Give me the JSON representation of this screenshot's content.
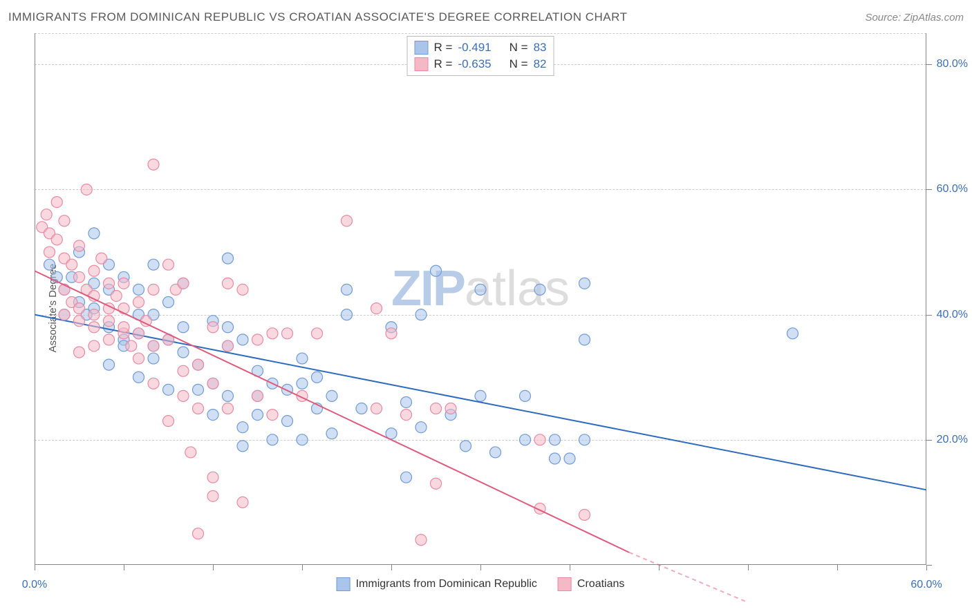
{
  "header": {
    "title": "IMMIGRANTS FROM DOMINICAN REPUBLIC VS CROATIAN ASSOCIATE'S DEGREE CORRELATION CHART",
    "source": "Source: ZipAtlas.com"
  },
  "chart": {
    "type": "scatter",
    "y_axis_label": "Associate's Degree",
    "watermark_zip": "ZIP",
    "watermark_atlas": "atlas",
    "xlim": [
      0,
      60
    ],
    "ylim": [
      0,
      85
    ],
    "x_ticks": [
      0,
      6,
      12,
      18,
      24,
      30,
      36,
      42,
      48,
      54,
      60
    ],
    "x_tick_labels": {
      "0": "0.0%",
      "60": "60.0%"
    },
    "y_ticks": [
      0,
      20,
      40,
      60,
      80
    ],
    "y_tick_labels": {
      "20": "20.0%",
      "40": "40.0%",
      "60": "60.0%",
      "80": "80.0%"
    },
    "grid_lines_y": [
      20,
      40,
      60,
      80,
      85
    ],
    "grid_color": "#cccccc",
    "background_color": "#ffffff",
    "axis_color": "#888888",
    "tick_label_color": "#3b6fb6",
    "series": [
      {
        "name": "Immigrants from Dominican Republic",
        "color_fill": "#a9c5ea",
        "color_stroke": "#6f9bd8",
        "marker_radius": 8,
        "fill_opacity": 0.55,
        "regression": {
          "x1": 0,
          "y1": 40,
          "x2": 60,
          "y2": 12,
          "dashed_after_x": 60,
          "color": "#2e6bc0",
          "width": 2
        },
        "points": [
          [
            1,
            48
          ],
          [
            1.5,
            46
          ],
          [
            2,
            44
          ],
          [
            2.5,
            46
          ],
          [
            3,
            50
          ],
          [
            3.5,
            40
          ],
          [
            4,
            53
          ],
          [
            4,
            45
          ],
          [
            5,
            48
          ],
          [
            5,
            44
          ],
          [
            5,
            38
          ],
          [
            6,
            36
          ],
          [
            6,
            35
          ],
          [
            7,
            44
          ],
          [
            7,
            40
          ],
          [
            7,
            30
          ],
          [
            8,
            48
          ],
          [
            8,
            35
          ],
          [
            8,
            33
          ],
          [
            9,
            42
          ],
          [
            9,
            36
          ],
          [
            9,
            28
          ],
          [
            10,
            45
          ],
          [
            10,
            38
          ],
          [
            10,
            34
          ],
          [
            11,
            32
          ],
          [
            11,
            28
          ],
          [
            12,
            39
          ],
          [
            12,
            29
          ],
          [
            12,
            24
          ],
          [
            13,
            49
          ],
          [
            13,
            35
          ],
          [
            13,
            27
          ],
          [
            14,
            36
          ],
          [
            14,
            22
          ],
          [
            14,
            19
          ],
          [
            15,
            31
          ],
          [
            15,
            27
          ],
          [
            16,
            29
          ],
          [
            16,
            20
          ],
          [
            17,
            28
          ],
          [
            17,
            23
          ],
          [
            18,
            33
          ],
          [
            18,
            20
          ],
          [
            18,
            29
          ],
          [
            19,
            30
          ],
          [
            19,
            25
          ],
          [
            20,
            27
          ],
          [
            20,
            21
          ],
          [
            21,
            40
          ],
          [
            21,
            44
          ],
          [
            22,
            25
          ],
          [
            24,
            38
          ],
          [
            24,
            21
          ],
          [
            25,
            26
          ],
          [
            25,
            14
          ],
          [
            26,
            22
          ],
          [
            26,
            40
          ],
          [
            27,
            47
          ],
          [
            28,
            24
          ],
          [
            29,
            19
          ],
          [
            30,
            44
          ],
          [
            30,
            27
          ],
          [
            31,
            18
          ],
          [
            33,
            20
          ],
          [
            33,
            27
          ],
          [
            34,
            44
          ],
          [
            35,
            17
          ],
          [
            35,
            20
          ],
          [
            36,
            17
          ],
          [
            37,
            20
          ],
          [
            37,
            45
          ],
          [
            37,
            36
          ],
          [
            51,
            37
          ],
          [
            13,
            38
          ],
          [
            8,
            40
          ],
          [
            6,
            46
          ],
          [
            2,
            40
          ],
          [
            3,
            42
          ],
          [
            4,
            41
          ],
          [
            5,
            32
          ],
          [
            7,
            37
          ],
          [
            15,
            24
          ]
        ]
      },
      {
        "name": "Croatians",
        "color_fill": "#f5b8c6",
        "color_stroke": "#e88aa2",
        "marker_radius": 8,
        "fill_opacity": 0.55,
        "regression": {
          "x1": 0,
          "y1": 47,
          "x2": 40,
          "y2": 2,
          "dashed_after_x": 40,
          "dash_x2": 48,
          "dash_y2": -6,
          "color": "#e05a7d",
          "width": 2
        },
        "points": [
          [
            0.5,
            54
          ],
          [
            0.8,
            56
          ],
          [
            1,
            53
          ],
          [
            1,
            50
          ],
          [
            1.5,
            52
          ],
          [
            1.5,
            58
          ],
          [
            2,
            55
          ],
          [
            2,
            49
          ],
          [
            2,
            44
          ],
          [
            2.5,
            48
          ],
          [
            2.5,
            42
          ],
          [
            3,
            51
          ],
          [
            3,
            46
          ],
          [
            3,
            41
          ],
          [
            3.5,
            60
          ],
          [
            3.5,
            44
          ],
          [
            4,
            47
          ],
          [
            4,
            43
          ],
          [
            4,
            40
          ],
          [
            4.5,
            49
          ],
          [
            5,
            45
          ],
          [
            5,
            41
          ],
          [
            5,
            36
          ],
          [
            5.5,
            43
          ],
          [
            6,
            45
          ],
          [
            6,
            41
          ],
          [
            6,
            37
          ],
          [
            6.5,
            35
          ],
          [
            7,
            33
          ],
          [
            7,
            42
          ],
          [
            7.5,
            39
          ],
          [
            8,
            35
          ],
          [
            8,
            29
          ],
          [
            8,
            64
          ],
          [
            9,
            48
          ],
          [
            9,
            36
          ],
          [
            9,
            23
          ],
          [
            9.5,
            44
          ],
          [
            10,
            45
          ],
          [
            10,
            31
          ],
          [
            10,
            27
          ],
          [
            10.5,
            18
          ],
          [
            11,
            32
          ],
          [
            11,
            25
          ],
          [
            11,
            5
          ],
          [
            12,
            38
          ],
          [
            12,
            29
          ],
          [
            12,
            14
          ],
          [
            12,
            11
          ],
          [
            13,
            45
          ],
          [
            13,
            35
          ],
          [
            13,
            25
          ],
          [
            14,
            44
          ],
          [
            14,
            10
          ],
          [
            15,
            36
          ],
          [
            15,
            27
          ],
          [
            16,
            37
          ],
          [
            16,
            24
          ],
          [
            17,
            37
          ],
          [
            18,
            27
          ],
          [
            19,
            37
          ],
          [
            21,
            55
          ],
          [
            23,
            25
          ],
          [
            23,
            41
          ],
          [
            24,
            37
          ],
          [
            25,
            24
          ],
          [
            26,
            4
          ],
          [
            27,
            13
          ],
          [
            27,
            25
          ],
          [
            28,
            25
          ],
          [
            34,
            20
          ],
          [
            34,
            9
          ],
          [
            37,
            8
          ],
          [
            2,
            40
          ],
          [
            3,
            39
          ],
          [
            4,
            38
          ],
          [
            5,
            39
          ],
          [
            6,
            38
          ],
          [
            7,
            37
          ],
          [
            3,
            34
          ],
          [
            4,
            35
          ],
          [
            8,
            44
          ]
        ]
      }
    ],
    "legend_top": [
      {
        "swatch_fill": "#a9c5ea",
        "swatch_stroke": "#6f9bd8",
        "r_label": "R =",
        "r_value": "-0.491",
        "n_label": "N =",
        "n_value": "83"
      },
      {
        "swatch_fill": "#f5b8c6",
        "swatch_stroke": "#e88aa2",
        "r_label": "R =",
        "r_value": "-0.635",
        "n_label": "N =",
        "n_value": "82"
      }
    ],
    "legend_bottom": [
      {
        "swatch_fill": "#a9c5ea",
        "swatch_stroke": "#6f9bd8",
        "label": "Immigrants from Dominican Republic"
      },
      {
        "swatch_fill": "#f5b8c6",
        "swatch_stroke": "#e88aa2",
        "label": "Croatians"
      }
    ]
  }
}
